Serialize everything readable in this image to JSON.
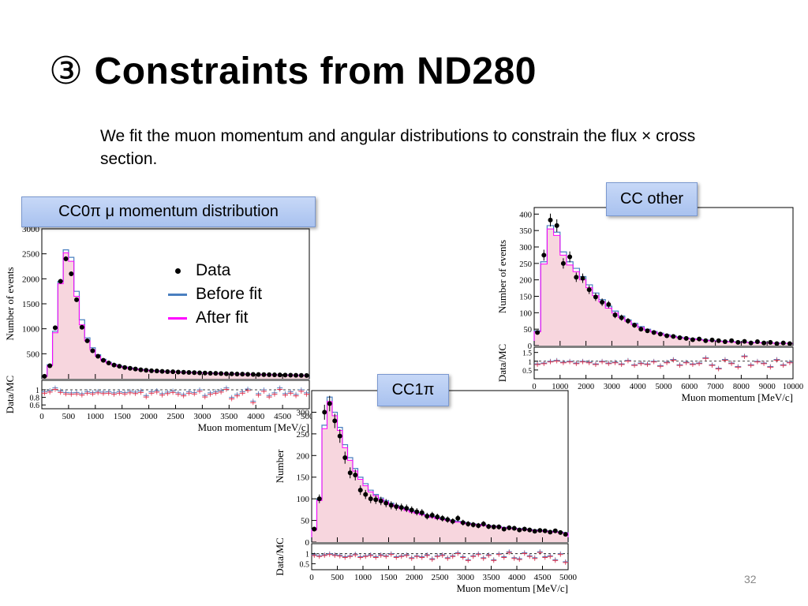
{
  "slide": {
    "marker": "③",
    "title": "Constraints from ND280",
    "intro": "We fit the muon momentum and angular distributions to constrain the flux × cross section.",
    "page_number": "32"
  },
  "labels": {
    "cc0pi": "CC0π μ momentum distribution",
    "ccother": "CC other",
    "cc1pi": "CC1π"
  },
  "legend": {
    "items": [
      {
        "label": "Data",
        "symbol": "dot",
        "color": "#000000"
      },
      {
        "label": "Before fit",
        "symbol": "line",
        "color": "#4a7fc0"
      },
      {
        "label": "After fit",
        "symbol": "line",
        "color": "#ff00ff"
      }
    ]
  },
  "colors": {
    "before_fit": "#4a7fc0",
    "after_fit": "#ff00ff",
    "fill": "#f7d6de",
    "data": "#000000",
    "ratio_blue": "#4a7fc0",
    "ratio_red": "#e0304c"
  },
  "chart_data": [
    {
      "id": "cc0pi",
      "type": "bar",
      "xlabel": "Muon momentum [MeV/c]",
      "ylabel": "Number of events",
      "ratio_ylabel": "Data/MC",
      "xlim": [
        0,
        5000
      ],
      "ylim": [
        0,
        3000
      ],
      "ratio_ylim": [
        0.5,
        1.25
      ],
      "xticks": [
        0,
        500,
        1000,
        1500,
        2000,
        2500,
        3000,
        3500,
        4000,
        4500,
        5000
      ],
      "yticks": [
        500,
        1000,
        1500,
        2000,
        2500,
        3000
      ],
      "ratio_yticks": [
        0.6,
        0.8,
        1
      ],
      "bin_width": 100,
      "before_fit": [
        50,
        280,
        950,
        1950,
        2580,
        2430,
        1750,
        1180,
        820,
        620,
        480,
        390,
        330,
        290,
        255,
        235,
        215,
        200,
        185,
        175,
        165,
        158,
        150,
        145,
        140,
        136,
        132,
        128,
        124,
        120,
        116,
        112,
        108,
        105,
        102,
        99,
        96,
        93,
        90,
        88,
        86,
        84,
        82,
        80,
        78,
        76,
        74,
        72,
        70,
        68
      ],
      "after_fit": [
        45,
        260,
        920,
        1900,
        2520,
        2350,
        1650,
        1080,
        760,
        580,
        450,
        370,
        315,
        278,
        245,
        225,
        207,
        193,
        179,
        169,
        160,
        153,
        146,
        141,
        136,
        132,
        128,
        124,
        120,
        116,
        113,
        109,
        106,
        103,
        100,
        97,
        94,
        91,
        88,
        86,
        84,
        82,
        80,
        78,
        76,
        74,
        72,
        70,
        68,
        66
      ],
      "data_points": [
        50,
        260,
        1020,
        1950,
        2400,
        2100,
        1580,
        1030,
        760,
        560,
        450,
        370,
        315,
        275,
        250,
        225,
        210,
        195,
        180,
        170,
        160,
        155,
        148,
        143,
        140,
        135,
        130,
        127,
        123,
        119,
        115,
        111,
        108,
        105,
        101,
        98,
        95,
        92,
        89,
        87,
        85,
        82,
        80,
        78,
        76,
        74,
        72,
        70,
        68,
        66
      ],
      "ratio": [
        0.95,
        0.98,
        1.05,
        0.97,
        0.93,
        0.92,
        0.93,
        0.9,
        0.95,
        0.93,
        0.96,
        0.94,
        0.95,
        0.92,
        0.95,
        0.93,
        0.96,
        0.94,
        0.97,
        0.85,
        0.95,
        0.98,
        0.9,
        0.94,
        0.97,
        0.92,
        0.88,
        0.95,
        0.93,
        1.0,
        0.85,
        0.92,
        0.95,
        0.98,
        1.05,
        0.8,
        0.88,
        0.95,
        1.02,
        0.7,
        0.9,
        1.0,
        0.85,
        0.92,
        1.05,
        0.9,
        0.95,
        0.88,
        1.0,
        0.92
      ]
    },
    {
      "id": "ccother",
      "type": "bar",
      "xlabel": "Muon momentum [MeV/c]",
      "ylabel": "Number of events",
      "ratio_ylabel": "Data/MC",
      "xlim": [
        0,
        10000
      ],
      "ylim": [
        0,
        420
      ],
      "ratio_ylim": [
        0,
        1.8
      ],
      "xticks": [
        0,
        1000,
        2000,
        3000,
        4000,
        5000,
        6000,
        7000,
        8000,
        9000,
        10000
      ],
      "yticks": [
        0,
        50,
        100,
        150,
        200,
        250,
        300,
        350,
        400
      ],
      "ratio_yticks": [
        0.5,
        1,
        1.5
      ],
      "bin_width": 250,
      "before_fit": [
        45,
        255,
        365,
        345,
        285,
        255,
        235,
        210,
        185,
        160,
        140,
        120,
        105,
        90,
        78,
        68,
        58,
        50,
        43,
        38,
        33,
        29,
        26,
        23,
        21,
        19,
        17,
        15,
        14,
        13,
        12,
        11,
        10,
        10,
        9,
        9,
        8,
        8,
        7,
        7
      ],
      "after_fit": [
        42,
        248,
        355,
        335,
        275,
        245,
        225,
        200,
        176,
        152,
        133,
        114,
        99,
        85,
        74,
        64,
        55,
        47,
        41,
        36,
        31,
        27,
        24,
        22,
        20,
        18,
        16,
        14,
        13,
        12,
        11,
        10,
        10,
        9,
        9,
        8,
        8,
        7,
        7,
        7
      ],
      "data_points": [
        40,
        275,
        382,
        365,
        250,
        270,
        208,
        205,
        170,
        148,
        132,
        125,
        93,
        85,
        75,
        62,
        50,
        45,
        40,
        35,
        30,
        28,
        24,
        22,
        18,
        20,
        15,
        17,
        15,
        12,
        15,
        10,
        13,
        8,
        12,
        8,
        10,
        6,
        8,
        6
      ],
      "ratio": [
        0.85,
        0.9,
        1.0,
        1.05,
        0.95,
        1.0,
        0.9,
        1.0,
        0.95,
        0.85,
        1.0,
        0.9,
        0.95,
        0.85,
        1.05,
        0.8,
        0.9,
        0.85,
        1.0,
        0.75,
        0.95,
        1.1,
        0.8,
        0.95,
        0.85,
        0.9,
        1.2,
        0.8,
        0.6,
        1.1,
        0.9,
        0.7,
        1.3,
        0.8,
        1.0,
        0.9,
        0.7,
        1.1,
        0.8,
        0.95
      ]
    },
    {
      "id": "cc1pi",
      "type": "bar",
      "xlabel": "Muon momentum [MeV/c]",
      "ylabel": "Number",
      "ratio_ylabel": "Data/MC",
      "xlim": [
        0,
        5000
      ],
      "ylim": [
        0,
        350
      ],
      "ratio_ylim": [
        0.2,
        1.5
      ],
      "xticks": [
        0,
        500,
        1000,
        1500,
        2000,
        2500,
        3000,
        3500,
        4000,
        4500,
        5000
      ],
      "yticks": [
        0,
        50,
        100,
        150,
        200,
        250,
        300
      ],
      "ratio_yticks": [
        0.5,
        1
      ],
      "bin_width": 100,
      "before_fit": [
        30,
        100,
        270,
        335,
        300,
        265,
        225,
        195,
        170,
        150,
        135,
        120,
        110,
        102,
        96,
        90,
        85,
        80,
        76,
        72,
        68,
        65,
        62,
        59,
        56,
        54,
        52,
        50,
        48,
        46,
        44,
        42,
        41,
        40,
        38,
        37,
        36,
        34,
        33,
        32,
        31,
        30,
        29,
        28,
        27,
        26,
        25,
        24,
        23,
        22
      ],
      "after_fit": [
        28,
        96,
        262,
        325,
        292,
        258,
        218,
        189,
        164,
        145,
        130,
        116,
        107,
        99,
        93,
        87,
        82,
        77,
        73,
        69,
        66,
        63,
        60,
        57,
        54,
        52,
        50,
        48,
        46,
        44,
        42,
        41,
        40,
        38,
        37,
        36,
        35,
        33,
        32,
        31,
        30,
        29,
        28,
        27,
        26,
        25,
        24,
        23,
        22,
        21
      ],
      "data_points": [
        30,
        100,
        300,
        320,
        280,
        245,
        195,
        160,
        155,
        120,
        110,
        100,
        98,
        95,
        90,
        85,
        82,
        80,
        78,
        74,
        70,
        68,
        60,
        62,
        58,
        55,
        52,
        48,
        55,
        45,
        42,
        40,
        38,
        42,
        36,
        35,
        35,
        30,
        33,
        32,
        28,
        30,
        28,
        25,
        27,
        26,
        23,
        26,
        22,
        18
      ],
      "ratio": [
        0.95,
        0.9,
        0.95,
        1.0,
        0.95,
        0.92,
        0.85,
        0.9,
        0.98,
        0.85,
        0.9,
        0.95,
        0.85,
        0.95,
        0.9,
        1.0,
        0.85,
        0.9,
        0.95,
        0.8,
        0.9,
        0.85,
        0.95,
        0.75,
        0.9,
        0.95,
        0.8,
        0.9,
        1.05,
        0.85,
        0.7,
        0.9,
        1.0,
        0.8,
        0.95,
        0.7,
        1.0,
        0.85,
        1.1,
        0.8,
        0.75,
        1.05,
        0.9,
        0.8,
        1.1,
        0.85,
        0.9,
        0.7,
        1.0,
        0.6
      ]
    }
  ]
}
